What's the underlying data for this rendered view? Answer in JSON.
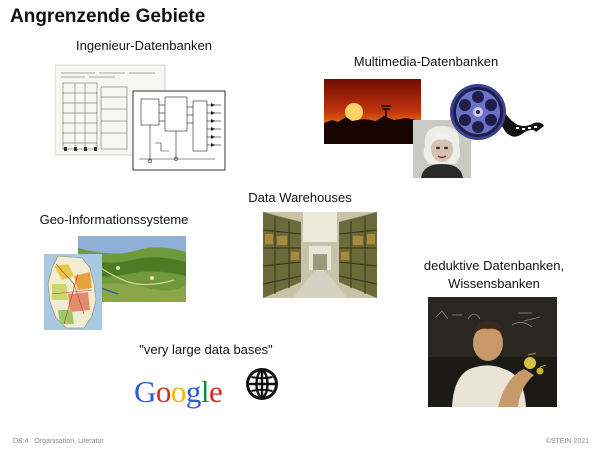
{
  "slide": {
    "title": "Angrenzende Gebiete"
  },
  "topics": {
    "ingenieur": "Ingenieur-Datenbanken",
    "multimedia": "Multimedia-Datenbanken",
    "warehouses": "Data Warehouses",
    "geo": "Geo-Informationssysteme",
    "deduktiv_line1": "deduktive Datenbanken,",
    "deduktiv_line2": "Wissensbanken",
    "vldb": "\"very large data bases\""
  },
  "logos": {
    "google": [
      "G",
      "o",
      "o",
      "g",
      "l",
      "e"
    ],
    "google_colors": [
      "#2a5bd7",
      "#d62d20",
      "#f4b400",
      "#2a5bd7",
      "#138a36",
      "#d62d20"
    ],
    "globe_icon": "globe-icon"
  },
  "footer": {
    "left_id": "DB:4",
    "left_text": "Organisation, Literatur",
    "right": "©STEIN 2021"
  }
}
